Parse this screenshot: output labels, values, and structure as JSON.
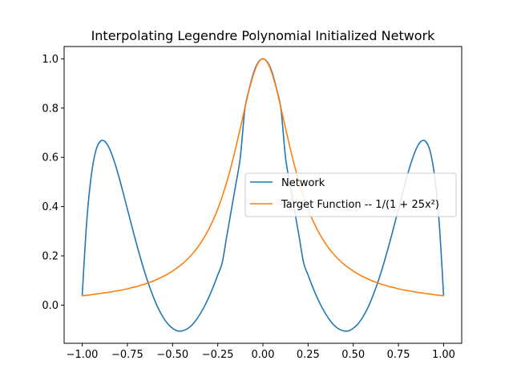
{
  "chart_data": {
    "type": "line",
    "title": "Interpolating Legendre Polynomial Initialized Network",
    "xlabel": "",
    "ylabel": "",
    "xlim": [
      -1.1,
      1.1
    ],
    "ylim": [
      -0.155,
      1.05
    ],
    "x_ticks": [
      -1.0,
      -0.75,
      -0.5,
      -0.25,
      0.0,
      0.25,
      0.5,
      0.75,
      1.0
    ],
    "x_tick_labels": [
      "−1.00",
      "−0.75",
      "−0.50",
      "−0.25",
      "0.00",
      "0.25",
      "0.50",
      "0.75",
      "1.00"
    ],
    "y_ticks": [
      0.0,
      0.2,
      0.4,
      0.6,
      0.8,
      1.0
    ],
    "y_tick_labels": [
      "0.0",
      "0.2",
      "0.4",
      "0.6",
      "0.8",
      "1.0"
    ],
    "grid": false,
    "legend_placement": "center-right",
    "series": [
      {
        "name": "Network",
        "color": "#1f77b4",
        "x": [
          -1.0,
          -0.975,
          -0.95,
          -0.925,
          -0.9,
          -0.875,
          -0.85,
          -0.825,
          -0.8,
          -0.775,
          -0.75,
          -0.725,
          -0.7,
          -0.675,
          -0.65,
          -0.625,
          -0.6,
          -0.575,
          -0.55,
          -0.525,
          -0.5,
          -0.475,
          -0.45,
          -0.425,
          -0.4,
          -0.375,
          -0.35,
          -0.325,
          -0.3,
          -0.275,
          -0.25,
          -0.225,
          -0.2,
          -0.175,
          -0.15,
          -0.125,
          -0.1,
          -0.075,
          -0.05,
          -0.025,
          0.0,
          0.025,
          0.05,
          0.075,
          0.1,
          0.125,
          0.15,
          0.175,
          0.2,
          0.225,
          0.25,
          0.275,
          0.3,
          0.325,
          0.35,
          0.375,
          0.4,
          0.425,
          0.45,
          0.475,
          0.5,
          0.525,
          0.55,
          0.575,
          0.6,
          0.625,
          0.65,
          0.675,
          0.7,
          0.725,
          0.75,
          0.775,
          0.8,
          0.825,
          0.85,
          0.875,
          0.9,
          0.925,
          0.95,
          0.975,
          1.0
        ],
        "y": [
          0.038,
          0.339,
          0.524,
          0.626,
          0.665,
          0.665,
          0.637,
          0.589,
          0.529,
          0.461,
          0.39,
          0.319,
          0.25,
          0.185,
          0.124,
          0.07,
          0.022,
          -0.019,
          -0.052,
          -0.077,
          -0.094,
          -0.104,
          -0.105,
          -0.099,
          -0.086,
          -0.066,
          -0.039,
          -0.007,
          0.031,
          0.074,
          0.122,
          0.173,
          0.28,
          0.385,
          0.49,
          0.6,
          0.795,
          0.88,
          0.947,
          0.987,
          1.0,
          0.987,
          0.947,
          0.88,
          0.795,
          0.6,
          0.49,
          0.385,
          0.28,
          0.173,
          0.122,
          0.074,
          0.031,
          -0.007,
          -0.039,
          -0.066,
          -0.086,
          -0.099,
          -0.105,
          -0.104,
          -0.094,
          -0.077,
          -0.052,
          -0.019,
          0.022,
          0.07,
          0.124,
          0.185,
          0.25,
          0.319,
          0.39,
          0.461,
          0.529,
          0.589,
          0.637,
          0.665,
          0.665,
          0.626,
          0.524,
          0.339,
          0.038
        ]
      },
      {
        "name": "Target Function -- 1/(1 + 25x²)",
        "color": "#ff7f0e",
        "x": [
          -1.0,
          -0.975,
          -0.95,
          -0.925,
          -0.9,
          -0.875,
          -0.85,
          -0.825,
          -0.8,
          -0.775,
          -0.75,
          -0.725,
          -0.7,
          -0.675,
          -0.65,
          -0.625,
          -0.6,
          -0.575,
          -0.55,
          -0.525,
          -0.5,
          -0.475,
          -0.45,
          -0.425,
          -0.4,
          -0.375,
          -0.35,
          -0.325,
          -0.3,
          -0.275,
          -0.25,
          -0.225,
          -0.2,
          -0.175,
          -0.15,
          -0.125,
          -0.1,
          -0.075,
          -0.05,
          -0.025,
          0.0,
          0.025,
          0.05,
          0.075,
          0.1,
          0.125,
          0.15,
          0.175,
          0.2,
          0.225,
          0.25,
          0.275,
          0.3,
          0.325,
          0.35,
          0.375,
          0.4,
          0.425,
          0.45,
          0.475,
          0.5,
          0.525,
          0.55,
          0.575,
          0.6,
          0.625,
          0.65,
          0.675,
          0.7,
          0.725,
          0.75,
          0.775,
          0.8,
          0.825,
          0.85,
          0.875,
          0.9,
          0.925,
          0.95,
          0.975,
          1.0
        ],
        "y": [
          0.038,
          0.04,
          0.042,
          0.045,
          0.047,
          0.05,
          0.052,
          0.056,
          0.059,
          0.062,
          0.066,
          0.071,
          0.075,
          0.081,
          0.086,
          0.093,
          0.1,
          0.108,
          0.117,
          0.127,
          0.138,
          0.151,
          0.165,
          0.181,
          0.2,
          0.221,
          0.246,
          0.275,
          0.308,
          0.346,
          0.39,
          0.441,
          0.5,
          0.566,
          0.64,
          0.719,
          0.8,
          0.877,
          0.941,
          0.985,
          1.0,
          0.985,
          0.941,
          0.877,
          0.8,
          0.719,
          0.64,
          0.566,
          0.5,
          0.441,
          0.39,
          0.346,
          0.308,
          0.275,
          0.246,
          0.221,
          0.2,
          0.181,
          0.165,
          0.151,
          0.138,
          0.127,
          0.117,
          0.108,
          0.1,
          0.093,
          0.086,
          0.081,
          0.075,
          0.071,
          0.066,
          0.062,
          0.059,
          0.056,
          0.052,
          0.05,
          0.047,
          0.045,
          0.042,
          0.04,
          0.038
        ]
      }
    ],
    "legend": {
      "entries": [
        "Network",
        "Target Function -- 1/(1 + 25x²)"
      ]
    }
  }
}
